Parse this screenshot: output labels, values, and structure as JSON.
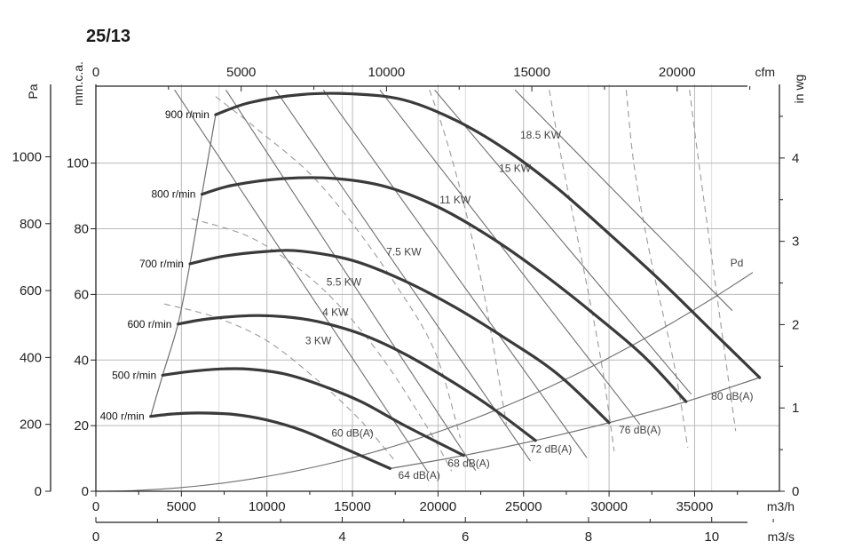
{
  "title": "25/13",
  "colors": {
    "curve": "#3a3a3a",
    "thin": "#6e6e6e",
    "grid": "#b9b9b9",
    "dashed": "#9a9a9a",
    "text": "#222222"
  },
  "chart_data": {
    "type": "line",
    "title": "25/13",
    "x_primary": {
      "label": "m3/h",
      "min": 0,
      "max": 40000,
      "ticks": [
        0,
        5000,
        10000,
        15000,
        20000,
        25000,
        30000,
        35000
      ]
    },
    "x_secondary_bottom": {
      "label": "m3/s",
      "ticks": [
        0,
        2,
        4,
        6,
        8,
        10
      ]
    },
    "x_top": {
      "label": "cfm",
      "ticks": [
        0,
        5000,
        10000,
        15000,
        20000
      ]
    },
    "y_left_outer": {
      "label": "Pa",
      "min": 0,
      "max": 1200,
      "ticks": [
        0,
        200,
        400,
        600,
        800,
        1000
      ]
    },
    "y_left_inner": {
      "label": "mm.c.a.",
      "ticks": [
        0,
        20,
        40,
        60,
        80,
        100
      ]
    },
    "y_right": {
      "label": "in wg",
      "ticks": [
        0,
        1,
        2,
        3,
        4
      ]
    },
    "grid": true,
    "fan_curves": [
      {
        "name": "900 r/min",
        "points": [
          [
            7000,
            1126
          ],
          [
            9000,
            1162
          ],
          [
            12000,
            1186
          ],
          [
            15000,
            1188
          ],
          [
            18000,
            1170
          ],
          [
            21000,
            1110
          ],
          [
            24000,
            1020
          ],
          [
            27000,
            905
          ],
          [
            30000,
            770
          ],
          [
            33000,
            630
          ],
          [
            36000,
            480
          ],
          [
            38800,
            340
          ]
        ]
      },
      {
        "name": "800 r/min",
        "points": [
          [
            6200,
            888
          ],
          [
            8000,
            915
          ],
          [
            11000,
            935
          ],
          [
            14000,
            935
          ],
          [
            17000,
            910
          ],
          [
            20000,
            850
          ],
          [
            23000,
            762
          ],
          [
            26000,
            655
          ],
          [
            29000,
            535
          ],
          [
            32000,
            405
          ],
          [
            34500,
            268
          ]
        ]
      },
      {
        "name": "700 r/min",
        "points": [
          [
            5500,
            680
          ],
          [
            7500,
            703
          ],
          [
            10000,
            717
          ],
          [
            12000,
            718
          ],
          [
            15000,
            690
          ],
          [
            18000,
            630
          ],
          [
            21000,
            550
          ],
          [
            24000,
            455
          ],
          [
            27000,
            350
          ],
          [
            30000,
            205
          ]
        ]
      },
      {
        "name": "600 r/min",
        "points": [
          [
            4800,
            500
          ],
          [
            6500,
            515
          ],
          [
            9000,
            525
          ],
          [
            11000,
            522
          ],
          [
            13000,
            507
          ],
          [
            15500,
            470
          ],
          [
            18000,
            412
          ],
          [
            20500,
            338
          ],
          [
            23000,
            255
          ],
          [
            25700,
            152
          ]
        ]
      },
      {
        "name": "500 r/min",
        "points": [
          [
            3900,
            347
          ],
          [
            5500,
            358
          ],
          [
            7500,
            366
          ],
          [
            9000,
            365
          ],
          [
            11000,
            351
          ],
          [
            13000,
            320
          ],
          [
            15500,
            268
          ],
          [
            18000,
            198
          ],
          [
            21500,
            107
          ]
        ]
      },
      {
        "name": "400 r/min",
        "points": [
          [
            3200,
            224
          ],
          [
            4500,
            231
          ],
          [
            6000,
            234
          ],
          [
            8000,
            230
          ],
          [
            10000,
            213
          ],
          [
            12000,
            183
          ],
          [
            14000,
            140
          ],
          [
            17200,
            68
          ]
        ]
      }
    ],
    "power_lines": [
      {
        "name": "3 KW"
      },
      {
        "name": "4 KW"
      },
      {
        "name": "5.5 KW"
      },
      {
        "name": "7.5 KW"
      },
      {
        "name": "11 KW"
      },
      {
        "name": "15 KW"
      },
      {
        "name": "18.5 KW"
      }
    ],
    "sound_levels": [
      "60 dB(A)",
      "64 dB(A)",
      "68 dB(A)",
      "72 dB(A)",
      "76 dB(A)",
      "80 dB(A)"
    ],
    "dynamic_pressure_label": "Pd"
  }
}
